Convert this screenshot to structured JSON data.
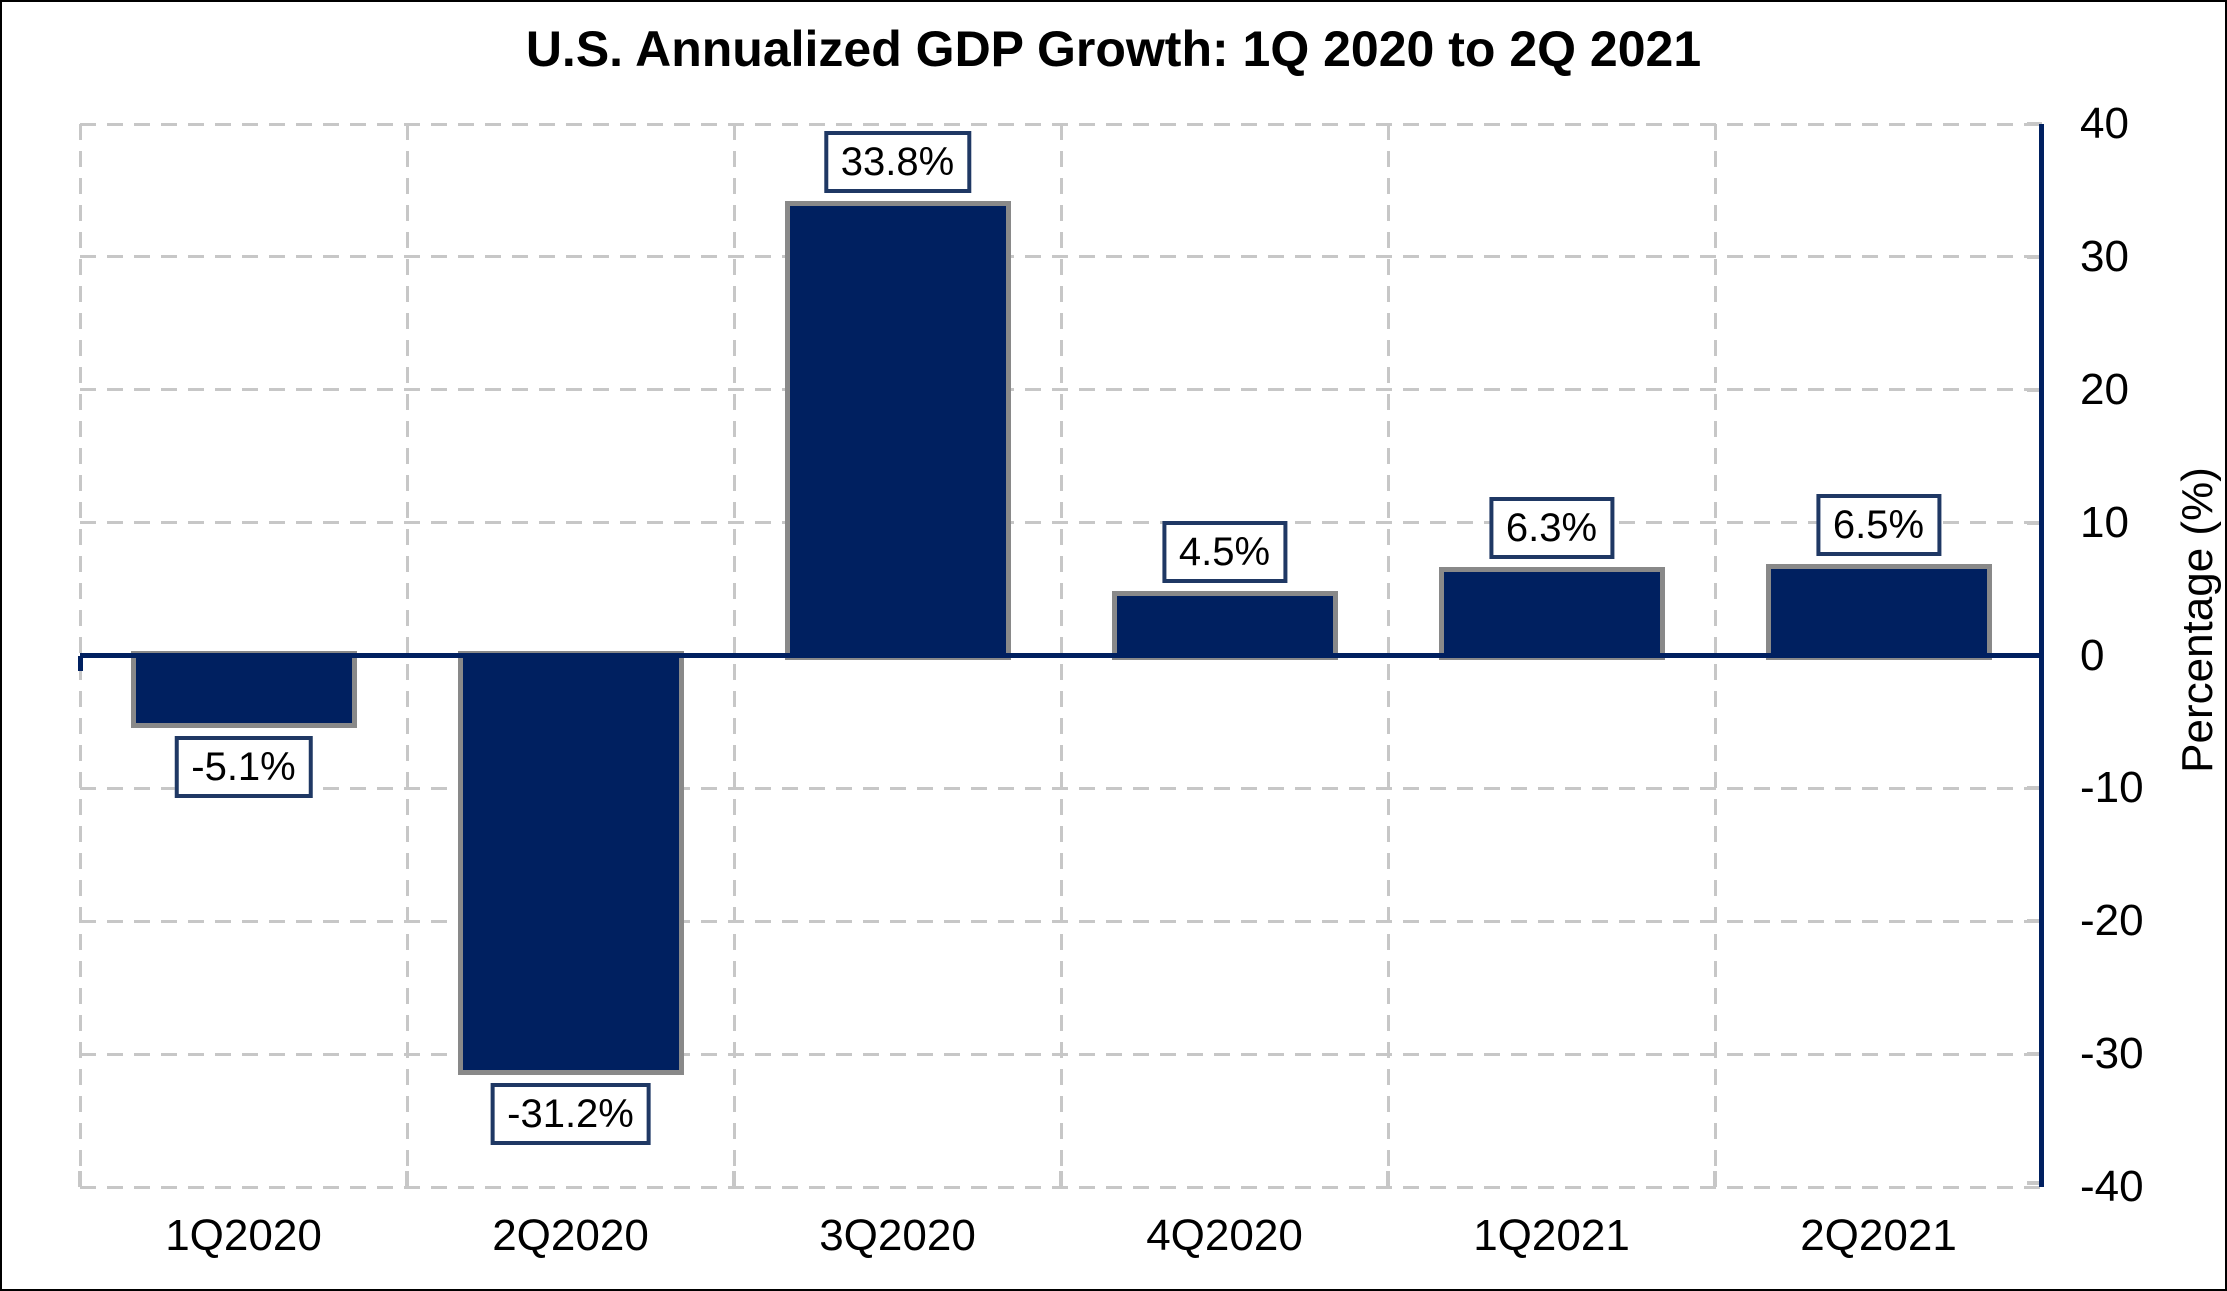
{
  "chart_data": {
    "type": "bar",
    "title": "U.S. Annualized GDP Growth: 1Q 2020 to 2Q 2021",
    "categories": [
      "1Q2020",
      "2Q2020",
      "3Q2020",
      "4Q2020",
      "1Q2021",
      "2Q2021"
    ],
    "values": [
      -5.1,
      -31.2,
      33.8,
      4.5,
      6.3,
      6.5
    ],
    "data_labels": [
      "-5.1%",
      "-31.2%",
      "33.8%",
      "4.5%",
      "6.3%",
      "6.5%"
    ],
    "xlabel": "",
    "ylabel": "Percentage (%)",
    "ylim": [
      -40,
      40
    ],
    "yticks": [
      40,
      30,
      20,
      10,
      0,
      -10,
      -20,
      -30,
      -40
    ],
    "grid": "dashed, horizontal and vertical",
    "legend": "none",
    "axis_side": "right",
    "colors": {
      "bar_fill": "#002060",
      "bar_edge": "#898989",
      "axis_line": "#002060",
      "zero_line": "#002060",
      "gridline": "#C7C7C7",
      "label_box_border": "#1F3864",
      "label_box_bg": "#FFFFFF",
      "text": "#000000",
      "background": "#FFFFFF",
      "frame_border": "#000000"
    }
  }
}
